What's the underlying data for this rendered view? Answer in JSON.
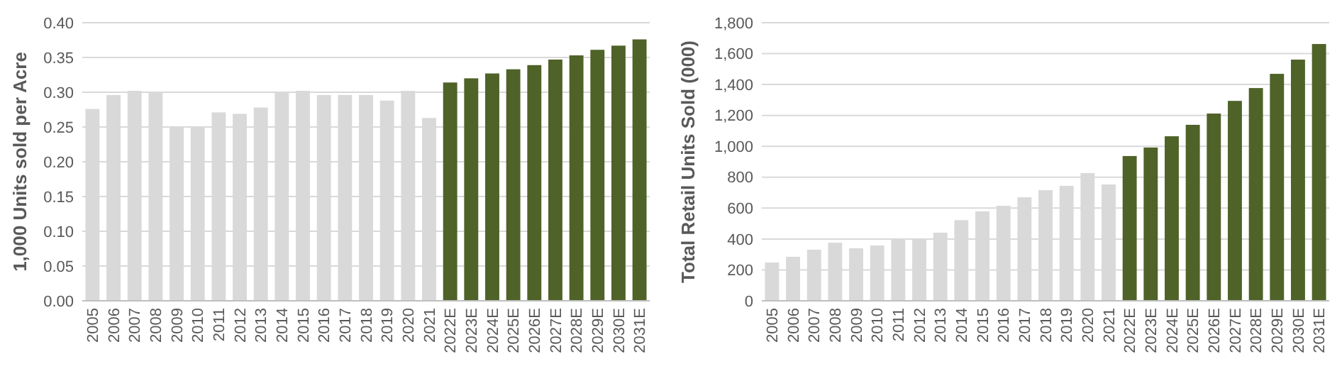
{
  "chart_data": [
    {
      "type": "bar",
      "ylabel": "1,000 Units sold per Acre",
      "categories": [
        "2005",
        "2006",
        "2007",
        "2008",
        "2009",
        "2010",
        "2011",
        "2012",
        "2013",
        "2014",
        "2015",
        "2016",
        "2017",
        "2018",
        "2019",
        "2020",
        "2021",
        "2022E",
        "2023E",
        "2024E",
        "2025E",
        "2026E",
        "2027E",
        "2028E",
        "2029E",
        "2030E",
        "2031E"
      ],
      "values": [
        0.276,
        0.296,
        0.302,
        0.3,
        0.249,
        0.249,
        0.271,
        0.269,
        0.278,
        0.3,
        0.302,
        0.296,
        0.296,
        0.296,
        0.288,
        0.302,
        0.263,
        0.314,
        0.32,
        0.327,
        0.333,
        0.339,
        0.347,
        0.353,
        0.361,
        0.367,
        0.376
      ],
      "colors": [
        "#d9d9d9",
        "#d9d9d9",
        "#d9d9d9",
        "#d9d9d9",
        "#d9d9d9",
        "#d9d9d9",
        "#d9d9d9",
        "#d9d9d9",
        "#d9d9d9",
        "#d9d9d9",
        "#d9d9d9",
        "#d9d9d9",
        "#d9d9d9",
        "#d9d9d9",
        "#d9d9d9",
        "#d9d9d9",
        "#d9d9d9",
        "#4f6228",
        "#4f6228",
        "#4f6228",
        "#4f6228",
        "#4f6228",
        "#4f6228",
        "#4f6228",
        "#4f6228",
        "#4f6228",
        "#4f6228"
      ],
      "ylim": [
        0,
        0.4
      ],
      "yticks": [
        {
          "value": 0,
          "label": "0.00"
        },
        {
          "value": 0.05,
          "label": "0.05"
        },
        {
          "value": 0.1,
          "label": "0.10"
        },
        {
          "value": 0.15,
          "label": "0.15"
        },
        {
          "value": 0.2,
          "label": "0.20"
        },
        {
          "value": 0.25,
          "label": "0.25"
        },
        {
          "value": 0.3,
          "label": "0.30"
        },
        {
          "value": 0.35,
          "label": "0.35"
        },
        {
          "value": 0.4,
          "label": "0.40"
        }
      ],
      "grid": "y"
    },
    {
      "type": "bar",
      "ylabel": "Total Retail Units Sold (000)",
      "categories": [
        "2005",
        "2006",
        "2007",
        "2008",
        "2009",
        "2010",
        "2011",
        "2012",
        "2013",
        "2014",
        "2015",
        "2016",
        "2017",
        "2018",
        "2019",
        "2020",
        "2021",
        "2022E",
        "2023E",
        "2024E",
        "2025E",
        "2026E",
        "2027E",
        "2028E",
        "2029E",
        "2030E",
        "2031E"
      ],
      "values": [
        248,
        285,
        331,
        376,
        340,
        358,
        404,
        404,
        441,
        522,
        579,
        615,
        670,
        716,
        744,
        827,
        753,
        937,
        992,
        1065,
        1139,
        1212,
        1294,
        1377,
        1469,
        1561,
        1662
      ],
      "colors": [
        "#d9d9d9",
        "#d9d9d9",
        "#d9d9d9",
        "#d9d9d9",
        "#d9d9d9",
        "#d9d9d9",
        "#d9d9d9",
        "#d9d9d9",
        "#d9d9d9",
        "#d9d9d9",
        "#d9d9d9",
        "#d9d9d9",
        "#d9d9d9",
        "#d9d9d9",
        "#d9d9d9",
        "#d9d9d9",
        "#d9d9d9",
        "#4f6228",
        "#4f6228",
        "#4f6228",
        "#4f6228",
        "#4f6228",
        "#4f6228",
        "#4f6228",
        "#4f6228",
        "#4f6228",
        "#4f6228"
      ],
      "ylim": [
        0,
        1800
      ],
      "yticks": [
        0,
        200,
        400,
        600,
        800,
        {
          "value": 1000,
          "label": "1,000"
        },
        {
          "value": 1200,
          "label": "1,200"
        },
        {
          "value": 1400,
          "label": "1,400"
        },
        {
          "value": 1600,
          "label": "1,600"
        },
        {
          "value": 1800,
          "label": "1,800"
        }
      ],
      "grid": "y"
    }
  ]
}
